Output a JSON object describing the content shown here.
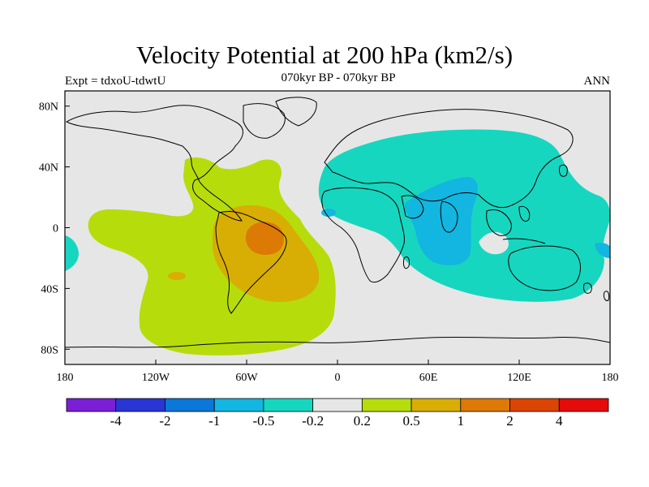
{
  "figure": {
    "title": "Velocity Potential at 200 hPa (km2/s)",
    "experiment": "Expt = tdxoU-tdwtU",
    "period": "070kyr BP - 070kyr BP",
    "season": "ANN"
  },
  "axes": {
    "lon_ticks": [
      "180",
      "120W",
      "60W",
      "0",
      "60E",
      "120E",
      "180"
    ],
    "lat_ticks": [
      "80N",
      "40N",
      "0",
      "40S",
      "80S"
    ],
    "lon_range": [
      -180,
      180
    ],
    "lat_range": [
      -90,
      90
    ]
  },
  "colorbar": {
    "colors": [
      "#7a1fd6",
      "#2a35d6",
      "#0b77d8",
      "#12b6e0",
      "#17d6bf",
      "#e6e6e6",
      "#b7dc0b",
      "#d8ae05",
      "#dc7a05",
      "#dc4404",
      "#e60a0a"
    ],
    "labels": [
      "-4",
      "-2",
      "-1",
      "-0.5",
      "-0.2",
      "0.2",
      "0.5",
      "1",
      "2",
      "4"
    ]
  },
  "map_colors": {
    "background": "#e6e6e6",
    "weak_negative": "#17d6bf",
    "negative": "#12b6e0",
    "weak_positive": "#b7dc0b",
    "positive": "#d8ae05",
    "strong_positive": "#dc7a05"
  }
}
